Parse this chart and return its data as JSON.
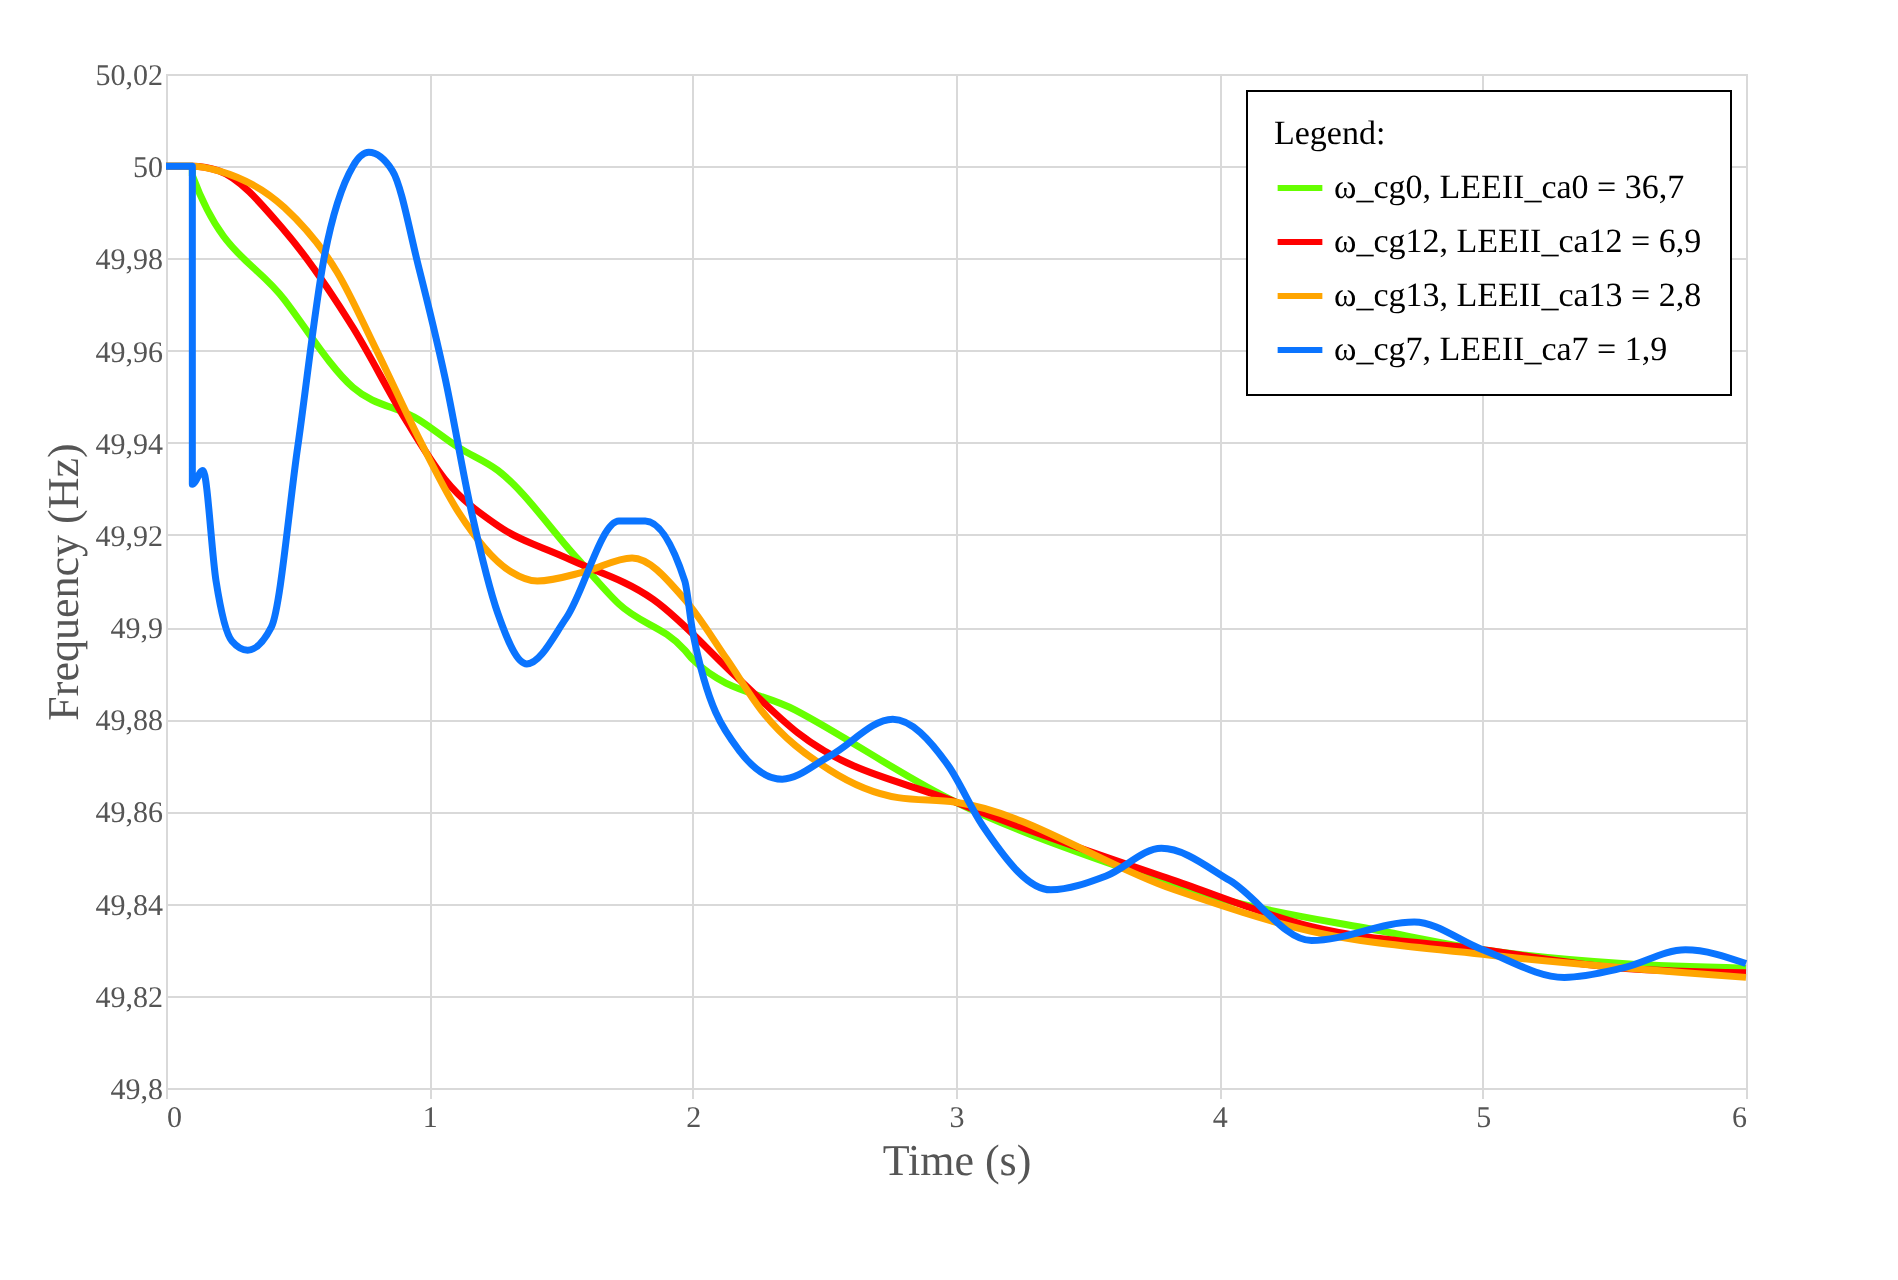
{
  "chart_data": {
    "type": "line",
    "xlabel": "Time (s)",
    "ylabel": "Frequency (Hz)",
    "legend_title": "Legend:",
    "xlim": [
      0,
      6
    ],
    "xticks": [
      0,
      1,
      2,
      3,
      4,
      5,
      6
    ],
    "ylim": [
      49.8,
      50.02
    ],
    "yticks": [
      {
        "value": 49.8,
        "label": "49,8"
      },
      {
        "value": 49.82,
        "label": "49,82"
      },
      {
        "value": 49.84,
        "label": "49,84"
      },
      {
        "value": 49.86,
        "label": "49,86"
      },
      {
        "value": 49.88,
        "label": "49,88"
      },
      {
        "value": 49.9,
        "label": "49,9"
      },
      {
        "value": 49.92,
        "label": "49,92"
      },
      {
        "value": 49.94,
        "label": "49,94"
      },
      {
        "value": 49.96,
        "label": "49,96"
      },
      {
        "value": 49.98,
        "label": "49,98"
      },
      {
        "value": 50,
        "label": "50"
      },
      {
        "value": 50.02,
        "label": "50,02"
      }
    ],
    "grid": true,
    "legend": "top right",
    "marker": "none",
    "line_style": "solid",
    "series": [
      {
        "name": "ω_cg0, LEEII_ca0 = 36,7",
        "color": "#66ff00",
        "x": [
          0,
          0.1,
          0.1,
          0.45,
          0.71,
          0.96,
          1.11,
          1.26,
          1.56,
          1.72,
          1.97,
          2.0,
          2.39,
          3.0,
          3.57,
          4.01,
          4.62,
          5.0,
          5.53,
          6.0
        ],
        "values": [
          50,
          50,
          49.998,
          49.971,
          49.952,
          49.945,
          49.939,
          49.934,
          49.915,
          49.905,
          49.895,
          49.893,
          49.882,
          49.862,
          49.849,
          49.841,
          49.834,
          49.83,
          49.827,
          49.826
        ]
      },
      {
        "name": "ω_cg12, LEEII_ca12 = 6,9",
        "color": "#ff0000",
        "x": [
          0,
          0.1,
          0.2,
          0.45,
          0.71,
          0.91,
          1.06,
          1.26,
          1.52,
          1.85,
          2.17,
          2.4,
          3.0,
          3.83,
          4.35,
          5.0,
          5.53,
          6.0
        ],
        "values": [
          50,
          50,
          49.999,
          49.986,
          49.965,
          49.945,
          49.932,
          49.922,
          49.915,
          49.906,
          49.889,
          49.877,
          49.862,
          49.845,
          49.835,
          49.83,
          49.826,
          49.825
        ]
      },
      {
        "name": "ω_cg13, LEEII_ca13 = 2,8",
        "color": "#ffa500",
        "x": [
          0,
          0.1,
          0.2,
          0.45,
          0.65,
          0.8,
          0.96,
          1.11,
          1.31,
          1.41,
          1.59,
          1.77,
          1.97,
          2.13,
          2.26,
          2.52,
          2.78,
          3.0,
          3.83,
          4.35,
          5.0,
          6.0
        ],
        "values": [
          50,
          50,
          49.999,
          49.991,
          49.977,
          49.96,
          49.941,
          49.925,
          49.912,
          49.91,
          49.912,
          49.915,
          49.906,
          49.893,
          49.882,
          49.869,
          49.863,
          49.862,
          49.843,
          49.834,
          49.829,
          49.824
        ]
      },
      {
        "name": "ω_cg7, LEEII_ca7 = 1,9",
        "color": "#0a74ff",
        "x": [
          0,
          0.1,
          0.1,
          0.14,
          0.19,
          0.25,
          0.31,
          0.4,
          0.5,
          0.6,
          0.71,
          0.77,
          0.86,
          0.96,
          1.06,
          1.16,
          1.26,
          1.37,
          1.52,
          1.72,
          1.82,
          1.97,
          2.0,
          2.18,
          2.34,
          2.52,
          2.76,
          2.97,
          3.1,
          3.36,
          3.57,
          3.78,
          4.04,
          4.35,
          4.74,
          5.0,
          5.31,
          5.53,
          5.77,
          6.0
        ],
        "values": [
          50,
          50,
          49.931,
          49.934,
          49.91,
          49.897,
          49.895,
          49.9,
          49.939,
          49.98,
          50.0,
          50.003,
          49.999,
          49.978,
          49.954,
          49.925,
          49.903,
          49.892,
          49.902,
          49.923,
          49.923,
          49.91,
          49.899,
          49.873,
          49.867,
          49.872,
          49.88,
          49.87,
          49.857,
          49.843,
          49.846,
          49.852,
          49.845,
          49.832,
          49.836,
          49.83,
          49.824,
          49.826,
          49.83,
          49.827
        ]
      }
    ]
  }
}
